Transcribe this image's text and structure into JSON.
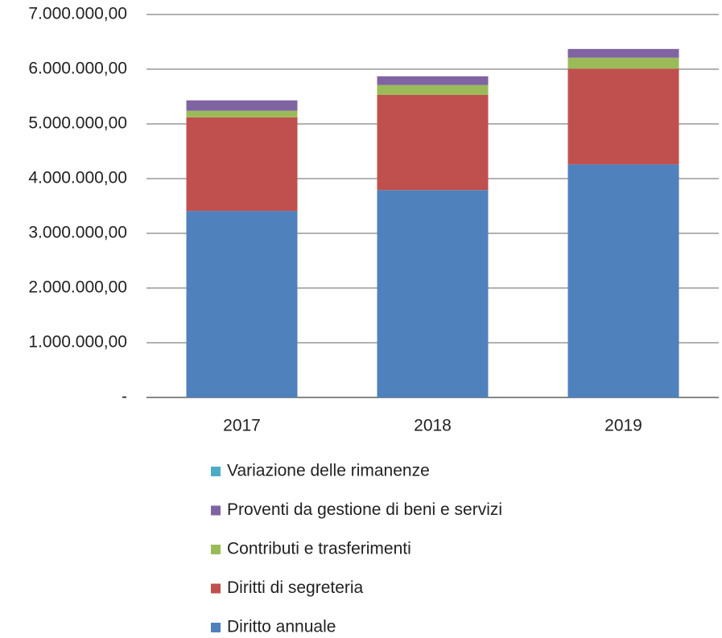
{
  "chart_data": {
    "type": "stacked_bar",
    "categories": [
      "2017",
      "2018",
      "2019"
    ],
    "series": [
      {
        "name": "Diritto annuale",
        "color": "#4f81bd",
        "values": [
          3410000,
          3790000,
          4260000
        ]
      },
      {
        "name": "Diritti di segreteria",
        "color": "#c0504d",
        "values": [
          1710000,
          1740000,
          1750000
        ]
      },
      {
        "name": "Contributi e trasferimenti",
        "color": "#9bbb59",
        "values": [
          120000,
          180000,
          200000
        ]
      },
      {
        "name": "Proventi da gestione di beni e servizi",
        "color": "#8064a2",
        "values": [
          190000,
          160000,
          160000
        ]
      },
      {
        "name": "Variazione delle rimanenze",
        "color": "#4bacc6",
        "values": [
          0,
          0,
          0
        ]
      }
    ],
    "ylim": [
      0,
      7000000
    ],
    "yticks": [
      {
        "value": 0,
        "label": "-"
      },
      {
        "value": 1000000,
        "label": "1.000.000,00"
      },
      {
        "value": 2000000,
        "label": "2.000.000,00"
      },
      {
        "value": 3000000,
        "label": "3.000.000,00"
      },
      {
        "value": 4000000,
        "label": "4.000.000,00"
      },
      {
        "value": 5000000,
        "label": "5.000.000,00"
      },
      {
        "value": 6000000,
        "label": "6.000.000,00"
      },
      {
        "value": 7000000,
        "label": "7.000.000,00"
      }
    ],
    "grid": true
  }
}
